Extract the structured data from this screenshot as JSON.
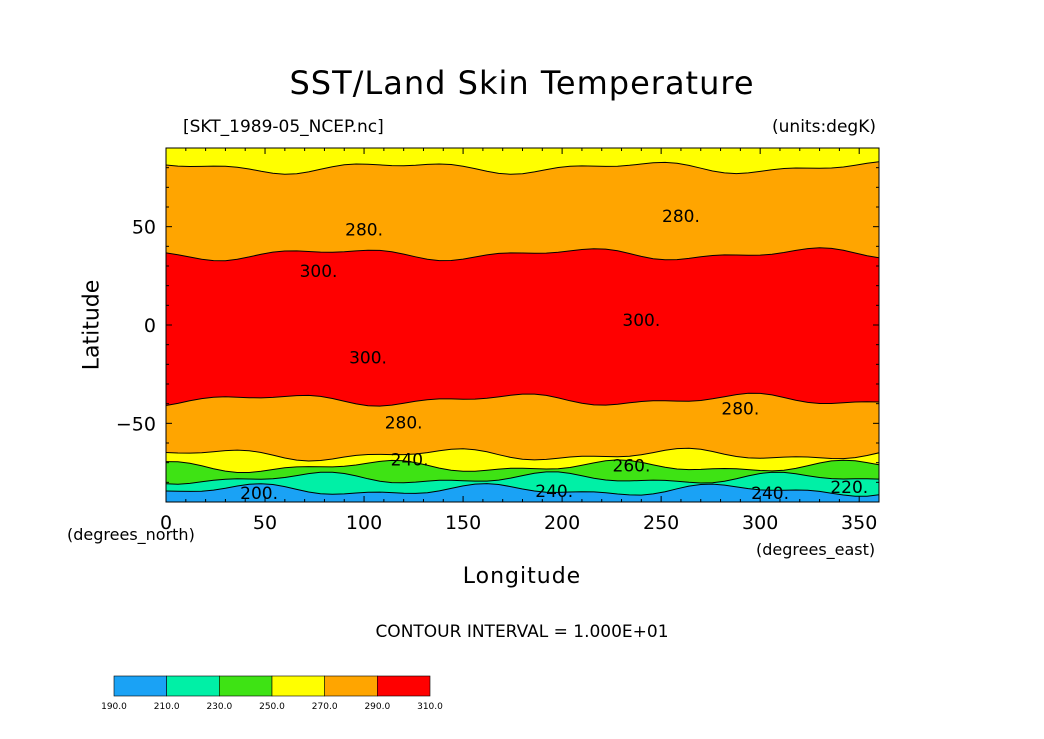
{
  "chart_data": {
    "type": "heatmap",
    "title": "SST/Land Skin Temperature",
    "file_label": "[SKT_1989-05_NCEP.nc]",
    "units_label": "(units:degK)",
    "xlabel": "Longitude",
    "ylabel": "Latitude",
    "x_units": "(degrees_east)",
    "y_units": "(degrees_north)",
    "xlim": [
      0,
      360
    ],
    "ylim": [
      -90,
      90
    ],
    "x_ticks": [
      0,
      50,
      100,
      150,
      200,
      250,
      300,
      350
    ],
    "y_ticks": [
      -50,
      0,
      50
    ],
    "contour_interval_text": "CONTOUR INTERVAL = 1.000E+01",
    "colorbar": {
      "levels": [
        "190.0",
        "210.0",
        "230.0",
        "250.0",
        "270.0",
        "290.0",
        "310.0"
      ],
      "colors": [
        "#1aa2f5",
        "#00f0a6",
        "#3ee314",
        "#ffff00",
        "#ffa500",
        "#ff0000"
      ]
    },
    "bands": [
      {
        "lat_from": 90,
        "lat_to": 80,
        "value_range": [
          250,
          270
        ],
        "color": "#ffff00"
      },
      {
        "lat_from": 80,
        "lat_to": 36,
        "value_range": [
          270,
          290
        ],
        "color": "#ffa500"
      },
      {
        "lat_from": 36,
        "lat_to": -38,
        "value_range": [
          290,
          310
        ],
        "color": "#ff0000"
      },
      {
        "lat_from": -38,
        "lat_to": -66,
        "value_range": [
          270,
          290
        ],
        "color": "#ffa500"
      },
      {
        "lat_from": -66,
        "lat_to": -72,
        "value_range": [
          250,
          270
        ],
        "color": "#ffff00"
      },
      {
        "lat_from": -72,
        "lat_to": -78,
        "value_range": [
          230,
          250
        ],
        "color": "#3ee314"
      },
      {
        "lat_from": -78,
        "lat_to": -84,
        "value_range": [
          210,
          230
        ],
        "color": "#00f0a6"
      },
      {
        "lat_from": -84,
        "lat_to": -90,
        "value_range": [
          190,
          210
        ],
        "color": "#1aa2f5"
      }
    ],
    "contour_labels": [
      {
        "text": "280.",
        "lon": 100,
        "lat": 48
      },
      {
        "text": "280.",
        "lon": 260,
        "lat": 55
      },
      {
        "text": "300.",
        "lon": 77,
        "lat": 27
      },
      {
        "text": "300.",
        "lon": 240,
        "lat": 2
      },
      {
        "text": "300.",
        "lon": 102,
        "lat": -17
      },
      {
        "text": "280.",
        "lon": 120,
        "lat": -50
      },
      {
        "text": "280.",
        "lon": 290,
        "lat": -43
      },
      {
        "text": "240.",
        "lon": 123,
        "lat": -69
      },
      {
        "text": "260.",
        "lon": 235,
        "lat": -72
      },
      {
        "text": "200.",
        "lon": 47,
        "lat": -86
      },
      {
        "text": "240.",
        "lon": 196,
        "lat": -85
      },
      {
        "text": "240.",
        "lon": 305,
        "lat": -86
      },
      {
        "text": "220.",
        "lon": 345,
        "lat": -83
      }
    ]
  }
}
